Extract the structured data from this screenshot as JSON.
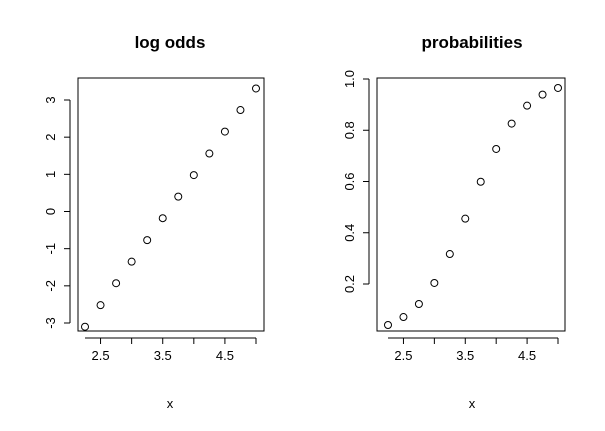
{
  "chart_data": [
    {
      "type": "scatter",
      "title": "log odds",
      "xlabel": "x",
      "ylabel": "",
      "xlim": [
        2.2,
        5.0
      ],
      "ylim": [
        -3.15,
        3.55
      ],
      "x_ticks": [
        2.5,
        3.5,
        4.5
      ],
      "x_tick_labels": [
        "2.5",
        "3.5",
        "4.5"
      ],
      "y_ticks": [
        -3,
        -2,
        -1,
        0,
        1,
        2,
        3
      ],
      "y_tick_labels": [
        "-3",
        "-2",
        "-1",
        "0",
        "1",
        "2",
        "3"
      ],
      "points": {
        "x": [
          2.25,
          2.5,
          2.75,
          3.0,
          3.25,
          3.5,
          3.75,
          4.0,
          4.25,
          4.5,
          4.75,
          5.0
        ],
        "y": [
          -3.1,
          -2.52,
          -1.93,
          -1.35,
          -0.77,
          -0.18,
          0.4,
          0.98,
          1.56,
          2.15,
          2.73,
          3.31
        ]
      },
      "marker": "open-circle",
      "grid": false
    },
    {
      "type": "scatter",
      "title": "probabilities",
      "xlabel": "x",
      "ylabel": "",
      "xlim": [
        2.2,
        5.0
      ],
      "ylim": [
        0.0,
        1.0
      ],
      "x_ticks": [
        2.5,
        3.5,
        4.5
      ],
      "x_tick_labels": [
        "2.5",
        "3.5",
        "4.5"
      ],
      "y_ticks": [
        0.2,
        0.4,
        0.6,
        0.8,
        1.0
      ],
      "y_tick_labels": [
        "0.2",
        "0.4",
        "0.6",
        "0.8",
        "1.0"
      ],
      "points": {
        "x": [
          2.25,
          2.5,
          2.75,
          3.0,
          3.25,
          3.5,
          3.75,
          4.0,
          4.25,
          4.5,
          4.75,
          5.0
        ],
        "y": [
          0.04,
          0.071,
          0.122,
          0.204,
          0.317,
          0.455,
          0.599,
          0.727,
          0.826,
          0.896,
          0.939,
          0.965
        ]
      },
      "marker": "open-circle",
      "grid": false
    }
  ]
}
